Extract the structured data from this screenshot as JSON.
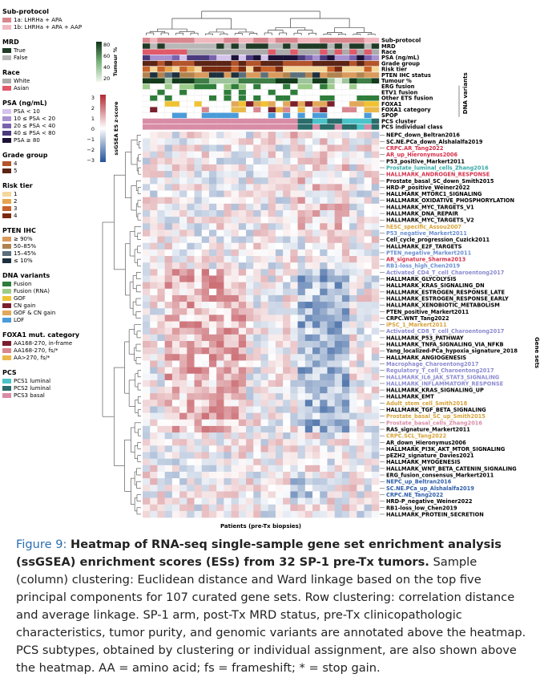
{
  "legends": [
    {
      "title": "Sub-protocol",
      "items": [
        {
          "label": "1a: LHRHa + APA",
          "color": "#d9878f"
        },
        {
          "label": "1b: LHRHa + APA + AAP",
          "color": "#f0b9c0"
        }
      ]
    },
    {
      "title": "MRD",
      "items": [
        {
          "label": "True",
          "color": "#1f3b26"
        },
        {
          "label": "False",
          "color": "#b7b7b7"
        }
      ]
    },
    {
      "title": "Race",
      "items": [
        {
          "label": "White",
          "color": "#ababab"
        },
        {
          "label": "Asian",
          "color": "#e05a6a"
        }
      ]
    },
    {
      "title": "PSA (ng/mL)",
      "items": [
        {
          "label": "PSA < 10",
          "color": "#d4c4ec"
        },
        {
          "label": "10 ≤ PSA < 20",
          "color": "#a892cf"
        },
        {
          "label": "20 ≤ PSA < 40",
          "color": "#7a63ad"
        },
        {
          "label": "40 ≤ PSA < 80",
          "color": "#4b3a7d"
        },
        {
          "label": "PSA ≥ 80",
          "color": "#1c1237"
        }
      ]
    },
    {
      "title": "Grade group",
      "items": [
        {
          "label": "4",
          "color": "#b3542b"
        },
        {
          "label": "5",
          "color": "#5b2414"
        }
      ]
    },
    {
      "title": "Risk tier",
      "items": [
        {
          "label": "1",
          "color": "#f4d79a"
        },
        {
          "label": "2",
          "color": "#e7a64e"
        },
        {
          "label": "3",
          "color": "#c8632a"
        },
        {
          "label": "4",
          "color": "#7a2a10"
        }
      ]
    },
    {
      "title": "PTEN IHC",
      "items": [
        {
          "label": "≥ 90%",
          "color": "#d99a5b"
        },
        {
          "label": "50–85%",
          "color": "#b0834e"
        },
        {
          "label": "15–45%",
          "color": "#5a6f7c"
        },
        {
          "label": "≤ 10%",
          "color": "#1c2f3e"
        }
      ]
    },
    {
      "title": "DNA variants",
      "items": [
        {
          "label": "Fusion",
          "color": "#2e7d3a"
        },
        {
          "label": "Fusion (RNA)",
          "color": "#9ccc8a"
        },
        {
          "label": "GOF",
          "color": "#f0c232"
        },
        {
          "label": "CN gain",
          "color": "#7a1f2e"
        },
        {
          "label": "GOF & CN gain",
          "color": "#e2a85a"
        },
        {
          "label": "LOF",
          "color": "#4a9bd8"
        }
      ]
    },
    {
      "title": "FOXA1 mut. category",
      "items": [
        {
          "label": "AA168-270, in-frame",
          "color": "#7a1f2e"
        },
        {
          "label": "AA168-270, fs/*",
          "color": "#d9878f"
        },
        {
          "label": "AA>270, fs/*",
          "color": "#e9b94c"
        }
      ]
    },
    {
      "title": "PCS",
      "items": [
        {
          "label": "PCS1 luminal",
          "color": "#4cc3c8"
        },
        {
          "label": "PCS2 luminal",
          "color": "#2a6d6b"
        },
        {
          "label": "PCS3 basal",
          "color": "#d98ca6"
        }
      ]
    }
  ],
  "scales": {
    "tumour_label": "Tumour %",
    "tumour_ticks": [
      "80",
      "60",
      "40",
      "20"
    ],
    "es_label": "ssGSEA ES z-score",
    "es_ticks": [
      "3",
      "2",
      "1",
      "0",
      "−1",
      "−2",
      "−3"
    ]
  },
  "annotation_rows": [
    "Sub-protocol",
    "MRD",
    "Race",
    "PSA (ng/mL)",
    "Grade group",
    "Risk tier",
    "PTEN IHC status",
    "Tumour %",
    "ERG fusion",
    "ETV1 fusion",
    "Other ETS fusion",
    "FOXA1",
    "FOXA1 category",
    "SPOP",
    "PCS cluster",
    "PCS individual class"
  ],
  "dna_variants_label": "DNA variants",
  "gene_sets_label": "Gene sets",
  "x_axis_label": "Patients (pre-Tx biopsies)",
  "gene_sets": [
    {
      "name": "NEPC_down_Beltran2016",
      "color": "#000000"
    },
    {
      "name": "SC.NE.PCa_down_Alshalalfa2019",
      "color": "#000000"
    },
    {
      "name": "CRPC.AR_Tang2022",
      "color": "#d4314b"
    },
    {
      "name": "AR_up_Hieronymus2006",
      "color": "#d4314b"
    },
    {
      "name": "P53_positive_Markert2011",
      "color": "#000000"
    },
    {
      "name": "Prostate_luminal_cells_Zhang2016",
      "color": "#36a9a6"
    },
    {
      "name": "HALLMARK_ANDROGEN_RESPONSE",
      "color": "#d4314b"
    },
    {
      "name": "Prostate_basal_SC_down_Smith2015",
      "color": "#000000"
    },
    {
      "name": "HRD-P_positive_Weiner2022",
      "color": "#000000"
    },
    {
      "name": "HALLMARK_MTORC1_SIGNALING",
      "color": "#000000"
    },
    {
      "name": "HALLMARK_OXIDATIVE_PHOSPHORYLATION",
      "color": "#000000"
    },
    {
      "name": "HALLMARK_MYC_TARGETS_V1",
      "color": "#000000"
    },
    {
      "name": "HALLMARK_DNA_REPAIR",
      "color": "#000000"
    },
    {
      "name": "HALLMARK_MYC_TARGETS_V2",
      "color": "#000000"
    },
    {
      "name": "hESC_specific_Assou2007",
      "color": "#d6a23a"
    },
    {
      "name": "P53_negative_Markert2011",
      "color": "#6a8fd0"
    },
    {
      "name": "Cell_cycle_progression_Cuzick2011",
      "color": "#000000"
    },
    {
      "name": "HALLMARK_E2F_TARGETS",
      "color": "#000000"
    },
    {
      "name": "PTEN_negative_Markert2011",
      "color": "#6a8fd0"
    },
    {
      "name": "AR_signature_Sharma2013",
      "color": "#d4314b"
    },
    {
      "name": "RB1-loss_high_Chen2019",
      "color": "#6a8fd0"
    },
    {
      "name": "Activated_CD4_T_cell_Charoentong2017",
      "color": "#8a8ad0"
    },
    {
      "name": "HALLMARK_GLYCOLYSIS",
      "color": "#000000"
    },
    {
      "name": "HALLMARK_KRAS_SIGNALING_DN",
      "color": "#000000"
    },
    {
      "name": "HALLMARK_ESTROGEN_RESPONSE_LATE",
      "color": "#000000"
    },
    {
      "name": "HALLMARK_ESTROGEN_RESPONSE_EARLY",
      "color": "#000000"
    },
    {
      "name": "HALLMARK_XENOBIOTIC_METABOLISM",
      "color": "#000000"
    },
    {
      "name": "PTEN_positive_Markert2011",
      "color": "#000000"
    },
    {
      "name": "CRPC.WNT_Tang2022",
      "color": "#000000"
    },
    {
      "name": "iPSC_1_Markert2011",
      "color": "#d6a23a"
    },
    {
      "name": "Activated_CD8_T_cell_Charoentong2017",
      "color": "#8a8ad0"
    },
    {
      "name": "HALLMARK_P53_PATHWAY",
      "color": "#000000"
    },
    {
      "name": "HALLMARK_TNFA_SIGNALING_VIA_NFKB",
      "color": "#000000"
    },
    {
      "name": "Yang_localized-PCa_hypoxia_signature_2018",
      "color": "#000000"
    },
    {
      "name": "HALLMARK_ANGIOGENESIS",
      "color": "#000000"
    },
    {
      "name": "Macrophage_Charoentong2017",
      "color": "#8a8ad0"
    },
    {
      "name": "Regulatory_T_cell_Charoentong2017",
      "color": "#8a8ad0"
    },
    {
      "name": "HALLMARK_IL6_JAK_STAT3_SIGNALING",
      "color": "#8a8ad0"
    },
    {
      "name": "HALLMARK_INFLAMMATORY_RESPONSE",
      "color": "#8a8ad0"
    },
    {
      "name": "HALLMARK_KRAS_SIGNALING_UP",
      "color": "#000000"
    },
    {
      "name": "HALLMARK_EMT",
      "color": "#000000"
    },
    {
      "name": "Adult_stem_cell_Smith2018",
      "color": "#d6a23a"
    },
    {
      "name": "HALLMARK_TGF_BETA_SIGNALING",
      "color": "#000000"
    },
    {
      "name": "Prostate_basal_SC_up_Smith2015",
      "color": "#d6a23a"
    },
    {
      "name": "Prostate_basal_cells_Zhang2016",
      "color": "#d98ca6"
    },
    {
      "name": "RAS_signature_Markert2011",
      "color": "#000000"
    },
    {
      "name": "CRPC.SCL_Tang2022",
      "color": "#d6a23a"
    },
    {
      "name": "AR_down_Hieronymus2006",
      "color": "#000000"
    },
    {
      "name": "HALLMARK_PI3K_AKT_MTOR_SIGNALING",
      "color": "#000000"
    },
    {
      "name": "pEZH2_signature_Davies2021",
      "color": "#000000"
    },
    {
      "name": "HALLMARK_MYOGENESIS",
      "color": "#000000"
    },
    {
      "name": "HALLMARK_WNT_BETA_CATENIN_SIGNALING",
      "color": "#000000"
    },
    {
      "name": "ERG_fusion_consensus_Markert2011",
      "color": "#000000"
    },
    {
      "name": "NEPC_up_Beltran2016",
      "color": "#2e5ea8"
    },
    {
      "name": "SC.NE.PCa_up_Alshalalfa2019",
      "color": "#2e5ea8"
    },
    {
      "name": "CRPC.NE_Tang2022",
      "color": "#2e5ea8"
    },
    {
      "name": "HRD-P_negative_Weiner2022",
      "color": "#000000"
    },
    {
      "name": "RB1-loss_low_Chen2019",
      "color": "#000000"
    },
    {
      "name": "HALLMARK_PROTEIN_SECRETION",
      "color": "#000000"
    }
  ],
  "caption": {
    "label": "Figure 9:",
    "bold": "Heatmap of RNA-seq single-sample gene set enrichment analysis (ssGSEA) enrichment scores (ESs) from 32 SP-1 pre-Tx tumors.",
    "body": "Sample (column) clustering: Euclidean distance and Ward linkage based on the top five principal components for 107 curated gene sets. Row clustering: correlation distance and average linkage. SP-1 arm, post-Tx MRD status, pre-Tx clinicopathologic characteristics, tumor purity, and genomic variants are annotated above the heatmap. PCS subtypes, obtained by clustering or individual assignment, are also shown above the heatmap. AA = amino acid; fs = frameshift; * = stop gain."
  }
}
